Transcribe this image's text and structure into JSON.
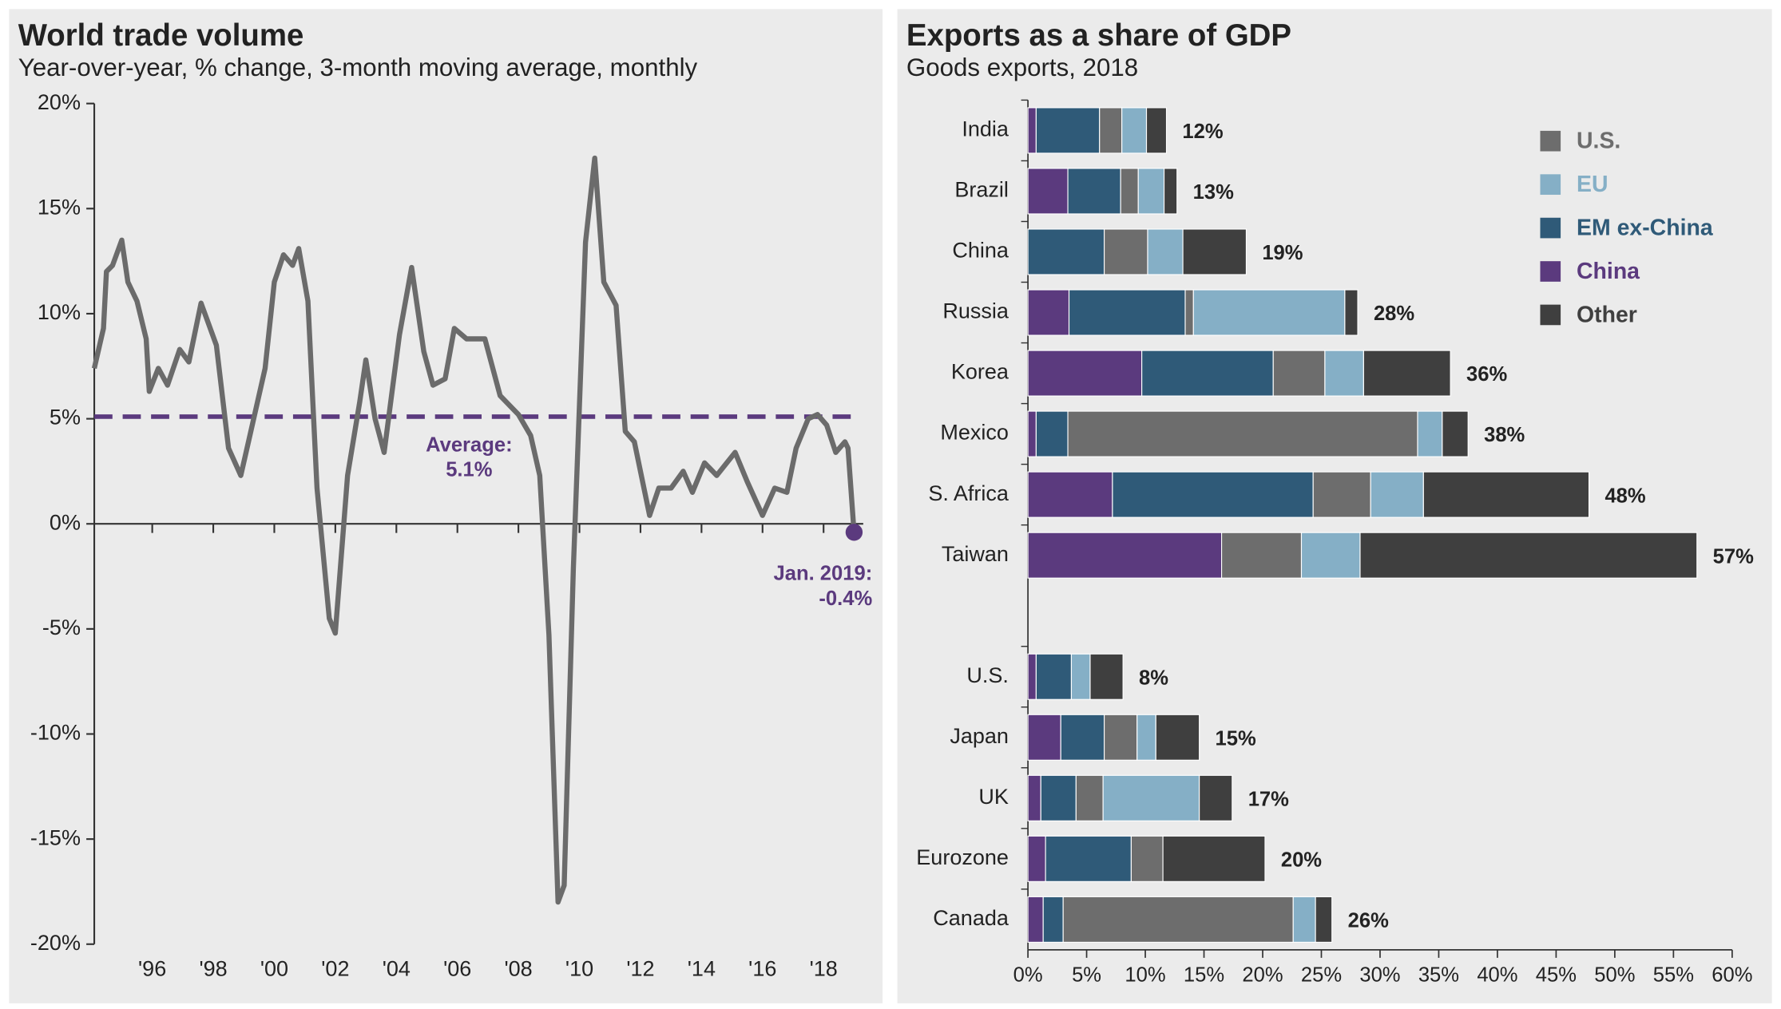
{
  "chart_data": [
    {
      "type": "line",
      "title": "World trade volume",
      "subtitle": "Year-over-year, % change, 3-month moving average, monthly",
      "x": [
        1994.1,
        1994.4,
        1994.5,
        1994.7,
        1995.0,
        1995.2,
        1995.5,
        1995.8,
        1995.9,
        1996.2,
        1996.5,
        1996.9,
        1997.2,
        1997.6,
        1998.1,
        1998.5,
        1998.9,
        1999.2,
        1999.7,
        2000.0,
        2000.3,
        2000.6,
        2000.8,
        2001.1,
        2001.4,
        2001.8,
        2002.0,
        2002.4,
        2002.8,
        2003.0,
        2003.3,
        2003.6,
        2004.1,
        2004.5,
        2004.9,
        2005.2,
        2005.6,
        2005.9,
        2006.3,
        2006.9,
        2007.4,
        2008.0,
        2008.4,
        2008.7,
        2009.0,
        2009.3,
        2009.5,
        2009.8,
        2010.2,
        2010.5,
        2010.8,
        2011.2,
        2011.5,
        2011.8,
        2012.3,
        2012.6,
        2013.0,
        2013.4,
        2013.7,
        2014.1,
        2014.5,
        2015.1,
        2015.5,
        2016.0,
        2016.4,
        2016.8,
        2017.1,
        2017.5,
        2017.8,
        2018.1,
        2018.4,
        2018.7,
        2018.8,
        2019.0
      ],
      "values": [
        7.4,
        9.3,
        12.0,
        12.3,
        13.5,
        11.5,
        10.6,
        8.8,
        6.3,
        7.4,
        6.6,
        8.3,
        7.7,
        10.5,
        8.5,
        3.6,
        2.3,
        4.2,
        7.4,
        11.5,
        12.8,
        12.3,
        13.1,
        10.6,
        1.7,
        -4.5,
        -5.2,
        2.3,
        5.8,
        7.8,
        5.0,
        3.4,
        9.0,
        12.2,
        8.2,
        6.6,
        6.9,
        9.3,
        8.8,
        8.8,
        6.1,
        5.2,
        4.2,
        2.3,
        -5.3,
        -18.0,
        -17.2,
        -2.1,
        13.4,
        17.4,
        11.5,
        10.4,
        4.4,
        3.9,
        0.4,
        1.7,
        1.7,
        2.5,
        1.5,
        2.9,
        2.3,
        3.4,
        2.0,
        0.4,
        1.7,
        1.5,
        3.6,
        5.0,
        5.2,
        4.7,
        3.4,
        3.9,
        3.6,
        -0.4
      ],
      "color": "#6b6b6b",
      "average": 5.1,
      "average_color": "#5b3a7e",
      "annotations": [
        {
          "lines": [
            "Average:",
            "5.1%"
          ]
        },
        {
          "lines": [
            "Jan. 2019:",
            "-0.4%"
          ]
        }
      ],
      "xlim": [
        1994.1,
        2019.3
      ],
      "xticks": [
        {
          "value": 1996,
          "label": "'96"
        },
        {
          "value": 1998,
          "label": "'98"
        },
        {
          "value": 2000,
          "label": "'00"
        },
        {
          "value": 2002,
          "label": "'02"
        },
        {
          "value": 2004,
          "label": "'04"
        },
        {
          "value": 2006,
          "label": "'06"
        },
        {
          "value": 2008,
          "label": "'08"
        },
        {
          "value": 2010,
          "label": "'10"
        },
        {
          "value": 2012,
          "label": "'12"
        },
        {
          "value": 2014,
          "label": "'14"
        },
        {
          "value": 2016,
          "label": "'16"
        },
        {
          "value": 2018,
          "label": "'18"
        }
      ],
      "ylim": [
        -20,
        20
      ],
      "yticks": [
        {
          "value": 20,
          "label": "20%"
        },
        {
          "value": 15,
          "label": "15%"
        },
        {
          "value": 10,
          "label": "10%"
        },
        {
          "value": 5,
          "label": "5%"
        },
        {
          "value": 0,
          "label": "0%"
        },
        {
          "value": -5,
          "label": "-5%"
        },
        {
          "value": -10,
          "label": "-10%"
        },
        {
          "value": -15,
          "label": "-15%"
        },
        {
          "value": -20,
          "label": "-20%"
        }
      ]
    },
    {
      "type": "bar",
      "orientation": "horizontal",
      "stacked": true,
      "title": "Exports as a share of GDP",
      "subtitle": "Goods exports, 2018",
      "categories": [
        "India",
        "Brazil",
        "China",
        "Russia",
        "Korea",
        "Mexico",
        "S. Africa",
        "Taiwan",
        null,
        "U.S.",
        "Japan",
        "UK",
        "Eurozone",
        "Canada"
      ],
      "series": [
        {
          "name": "U.S.",
          "color": "#6d6d6d",
          "values": [
            1.9,
            1.5,
            3.7,
            0.7,
            4.4,
            29.8,
            4.9,
            6.8,
            null,
            0,
            2.8,
            2.3,
            2.7,
            19.6
          ]
        },
        {
          "name": "EU",
          "color": "#85afc6",
          "values": [
            2.1,
            2.2,
            3.0,
            12.9,
            3.3,
            2.1,
            4.5,
            5.0,
            null,
            1.6,
            1.6,
            8.2,
            0,
            1.9
          ]
        },
        {
          "name": "EM ex-China",
          "color": "#2f5a78",
          "values": [
            5.4,
            4.5,
            6.5,
            9.9,
            11.2,
            2.7,
            17.1,
            0,
            null,
            3.0,
            3.7,
            3.0,
            7.3,
            1.7
          ]
        },
        {
          "name": "China",
          "color": "#5b3a7e",
          "values": [
            0.7,
            3.4,
            0,
            3.5,
            9.7,
            0.7,
            7.2,
            16.5,
            null,
            0.7,
            2.8,
            1.1,
            1.5,
            1.3
          ]
        },
        {
          "name": "Other",
          "color": "#3f3f3f",
          "values": [
            1.7,
            1.1,
            5.4,
            1.1,
            7.4,
            2.2,
            14.1,
            28.7,
            null,
            2.8,
            3.7,
            2.8,
            8.7,
            1.4
          ]
        }
      ],
      "total_labels": [
        "12%",
        "13%",
        "19%",
        "28%",
        "36%",
        "38%",
        "48%",
        "57%",
        null,
        "8%",
        "15%",
        "17%",
        "20%",
        "26%"
      ],
      "xlim": [
        0,
        60
      ],
      "xticks": [
        {
          "value": 0,
          "label": "0%"
        },
        {
          "value": 5,
          "label": "5%"
        },
        {
          "value": 10,
          "label": "10%"
        },
        {
          "value": 15,
          "label": "15%"
        },
        {
          "value": 20,
          "label": "20%"
        },
        {
          "value": 25,
          "label": "25%"
        },
        {
          "value": 30,
          "label": "30%"
        },
        {
          "value": 35,
          "label": "35%"
        },
        {
          "value": 40,
          "label": "40%"
        },
        {
          "value": 45,
          "label": "45%"
        },
        {
          "value": 50,
          "label": "50%"
        },
        {
          "value": 55,
          "label": "55%"
        },
        {
          "value": 60,
          "label": "60%"
        }
      ]
    }
  ]
}
